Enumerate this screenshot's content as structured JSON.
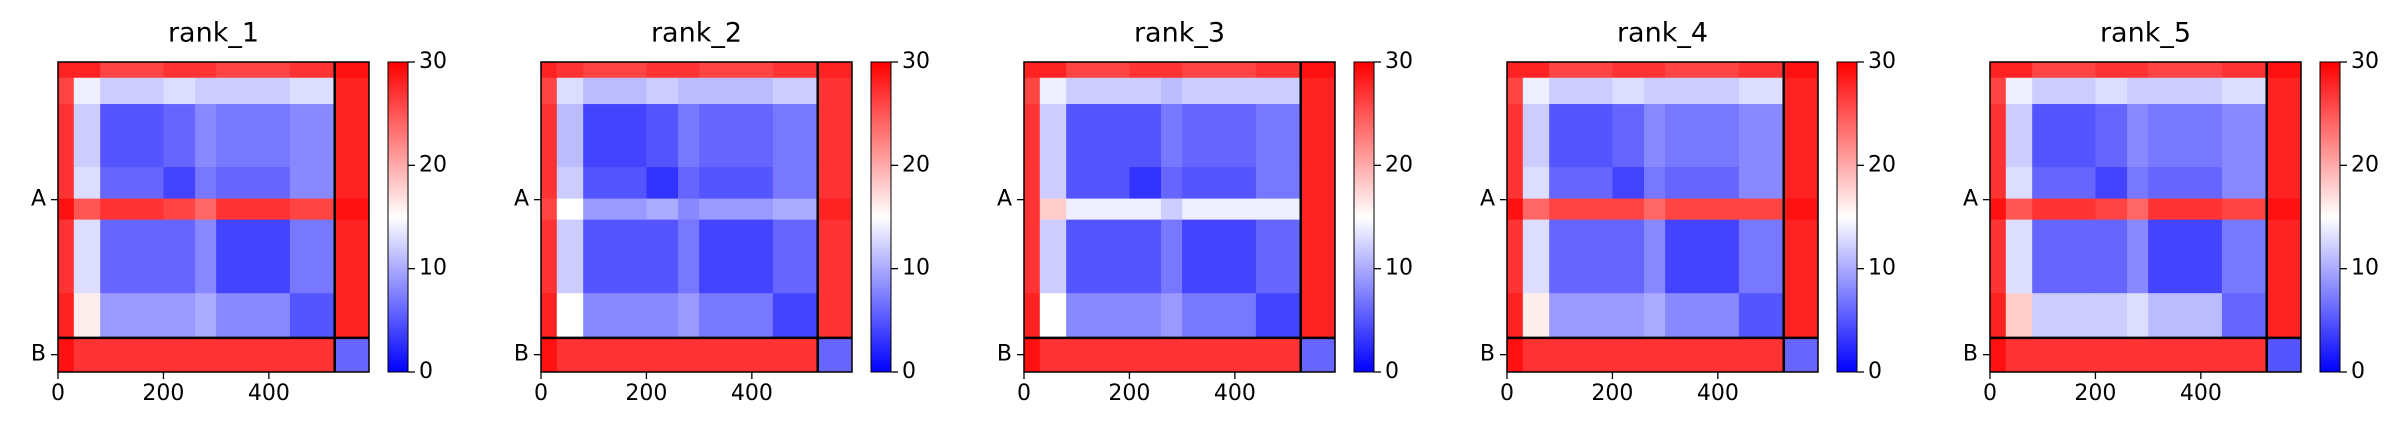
{
  "chart_data": [
    {
      "type": "heatmap",
      "title": "rank_1",
      "x_edges": [
        0,
        30,
        80,
        200,
        260,
        300,
        440,
        525,
        590
      ],
      "y_edges": [
        0,
        30,
        80,
        200,
        260,
        300,
        440,
        525,
        590
      ],
      "values": [
        [
          28,
          28,
          26,
          27,
          27,
          26,
          27,
          29
        ],
        [
          26,
          14,
          12,
          13,
          12,
          12,
          13,
          28
        ],
        [
          27,
          12,
          5,
          6,
          8,
          7,
          8,
          28
        ],
        [
          27,
          13,
          6,
          4,
          7,
          6,
          8,
          28
        ],
        [
          29,
          25,
          27,
          26,
          24,
          27,
          26,
          29
        ],
        [
          27,
          13,
          6,
          6,
          8,
          4,
          7,
          28
        ],
        [
          28,
          16,
          9,
          9,
          10,
          8,
          5,
          28
        ],
        [
          29,
          27,
          27,
          27,
          27,
          27,
          27,
          6
        ]
      ],
      "xlim": [
        0,
        590
      ],
      "ylim": [
        590,
        0
      ],
      "xticks": [
        0,
        200,
        400
      ],
      "yticks": [
        {
          "value": 262,
          "label": "A"
        },
        {
          "value": 557,
          "label": "B"
        }
      ],
      "clim": [
        0,
        30
      ],
      "cticks": [
        0,
        10,
        20,
        30
      ],
      "chain_breaks": [
        525
      ]
    },
    {
      "type": "heatmap",
      "title": "rank_2",
      "x_edges": [
        0,
        30,
        80,
        200,
        260,
        300,
        440,
        525,
        590
      ],
      "y_edges": [
        0,
        30,
        80,
        200,
        260,
        300,
        440,
        525,
        590
      ],
      "values": [
        [
          28,
          27,
          26,
          27,
          27,
          26,
          27,
          28
        ],
        [
          26,
          13,
          11,
          12,
          11,
          11,
          12,
          27
        ],
        [
          27,
          11,
          4,
          5,
          7,
          6,
          7,
          27
        ],
        [
          27,
          12,
          5,
          3,
          6,
          5,
          7,
          27
        ],
        [
          26,
          15,
          9,
          10,
          8,
          9,
          10,
          28
        ],
        [
          27,
          12,
          5,
          5,
          7,
          4,
          6,
          27
        ],
        [
          28,
          15,
          8,
          8,
          9,
          7,
          4,
          27
        ],
        [
          29,
          27,
          27,
          27,
          27,
          27,
          27,
          6
        ]
      ],
      "xlim": [
        0,
        590
      ],
      "ylim": [
        590,
        0
      ],
      "xticks": [
        0,
        200,
        400
      ],
      "yticks": [
        {
          "value": 262,
          "label": "A"
        },
        {
          "value": 557,
          "label": "B"
        }
      ],
      "clim": [
        0,
        30
      ],
      "cticks": [
        0,
        10,
        20,
        30
      ],
      "chain_breaks": [
        525
      ]
    },
    {
      "type": "heatmap",
      "title": "rank_3",
      "x_edges": [
        0,
        30,
        80,
        200,
        260,
        300,
        440,
        525,
        590
      ],
      "y_edges": [
        0,
        30,
        80,
        200,
        260,
        300,
        440,
        525,
        590
      ],
      "values": [
        [
          28,
          28,
          26,
          27,
          27,
          26,
          27,
          29
        ],
        [
          26,
          14,
          12,
          12,
          11,
          12,
          12,
          28
        ],
        [
          27,
          12,
          5,
          5,
          7,
          6,
          7,
          28
        ],
        [
          27,
          12,
          5,
          3,
          6,
          5,
          7,
          28
        ],
        [
          27,
          18,
          14,
          14,
          12,
          14,
          14,
          28
        ],
        [
          27,
          12,
          5,
          5,
          7,
          4,
          6,
          28
        ],
        [
          28,
          15,
          8,
          8,
          9,
          7,
          4,
          28
        ],
        [
          29,
          27,
          27,
          27,
          27,
          27,
          27,
          6
        ]
      ],
      "xlim": [
        0,
        590
      ],
      "ylim": [
        590,
        0
      ],
      "xticks": [
        0,
        200,
        400
      ],
      "yticks": [
        {
          "value": 262,
          "label": "A"
        },
        {
          "value": 557,
          "label": "B"
        }
      ],
      "clim": [
        0,
        30
      ],
      "cticks": [
        0,
        10,
        20,
        30
      ],
      "chain_breaks": [
        525
      ]
    },
    {
      "type": "heatmap",
      "title": "rank_4",
      "x_edges": [
        0,
        30,
        80,
        200,
        260,
        300,
        440,
        525,
        590
      ],
      "y_edges": [
        0,
        30,
        80,
        200,
        260,
        300,
        440,
        525,
        590
      ],
      "values": [
        [
          28,
          28,
          26,
          27,
          27,
          26,
          27,
          29
        ],
        [
          26,
          14,
          12,
          13,
          12,
          12,
          13,
          28
        ],
        [
          27,
          12,
          5,
          6,
          8,
          7,
          8,
          28
        ],
        [
          27,
          13,
          6,
          4,
          7,
          6,
          8,
          28
        ],
        [
          29,
          24,
          26,
          26,
          24,
          26,
          26,
          29
        ],
        [
          27,
          13,
          6,
          6,
          8,
          4,
          7,
          28
        ],
        [
          28,
          16,
          9,
          9,
          10,
          8,
          5,
          28
        ],
        [
          29,
          27,
          27,
          27,
          27,
          27,
          27,
          6
        ]
      ],
      "xlim": [
        0,
        590
      ],
      "ylim": [
        590,
        0
      ],
      "xticks": [
        0,
        200,
        400
      ],
      "yticks": [
        {
          "value": 262,
          "label": "A"
        },
        {
          "value": 557,
          "label": "B"
        }
      ],
      "clim": [
        0,
        30
      ],
      "cticks": [
        0,
        10,
        20,
        30
      ],
      "chain_breaks": [
        525
      ]
    },
    {
      "type": "heatmap",
      "title": "rank_5",
      "x_edges": [
        0,
        30,
        80,
        200,
        260,
        300,
        440,
        525,
        590
      ],
      "y_edges": [
        0,
        30,
        80,
        200,
        260,
        300,
        440,
        525,
        590
      ],
      "values": [
        [
          28,
          28,
          26,
          27,
          27,
          26,
          27,
          29
        ],
        [
          26,
          14,
          12,
          13,
          12,
          12,
          13,
          28
        ],
        [
          27,
          12,
          5,
          6,
          8,
          7,
          8,
          28
        ],
        [
          27,
          13,
          6,
          4,
          7,
          6,
          8,
          28
        ],
        [
          29,
          25,
          27,
          26,
          24,
          27,
          26,
          29
        ],
        [
          27,
          13,
          6,
          6,
          8,
          4,
          7,
          28
        ],
        [
          28,
          18,
          12,
          12,
          13,
          11,
          6,
          28
        ],
        [
          29,
          27,
          27,
          27,
          27,
          27,
          27,
          5
        ]
      ],
      "xlim": [
        0,
        590
      ],
      "ylim": [
        590,
        0
      ],
      "xticks": [
        0,
        200,
        400
      ],
      "yticks": [
        {
          "value": 262,
          "label": "A"
        },
        {
          "value": 557,
          "label": "B"
        }
      ],
      "clim": [
        0,
        30
      ],
      "cticks": [
        0,
        10,
        20,
        30
      ],
      "chain_breaks": [
        525
      ]
    }
  ]
}
